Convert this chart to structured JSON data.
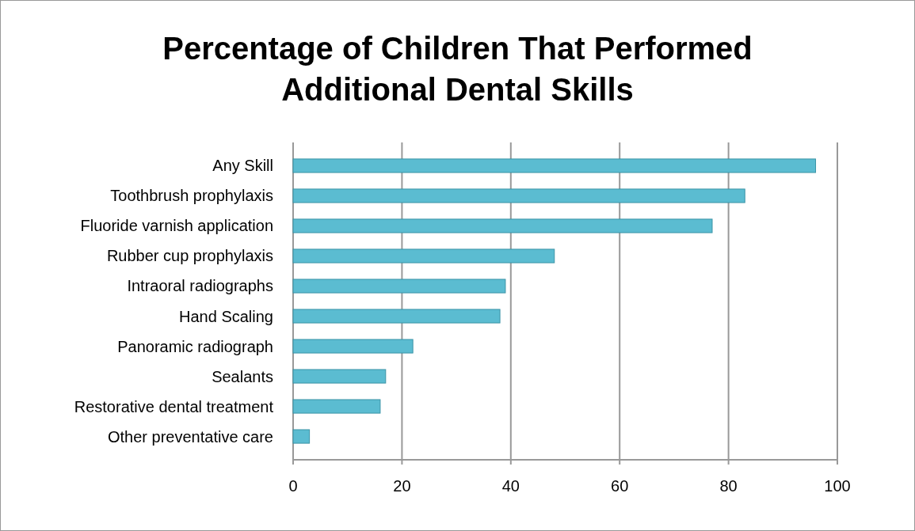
{
  "chart_data": {
    "type": "bar",
    "orientation": "horizontal",
    "title": "Percentage of Children That Performed Additional Dental Skills",
    "categories": [
      "Any Skill",
      "Toothbrush prophylaxis",
      "Fluoride varnish application",
      "Rubber cup prophylaxis",
      "Intraoral radiographs",
      "Hand Scaling",
      "Panoramic radiograph",
      "Sealants",
      "Restorative dental treatment",
      "Other preventative care"
    ],
    "values": [
      96,
      83,
      77,
      48,
      39,
      38,
      22,
      17,
      16,
      3
    ],
    "color": "#5bbcd1",
    "xlim": [
      0,
      100
    ],
    "xticks": [
      0,
      20,
      40,
      60,
      80,
      100
    ],
    "grid": "x"
  }
}
